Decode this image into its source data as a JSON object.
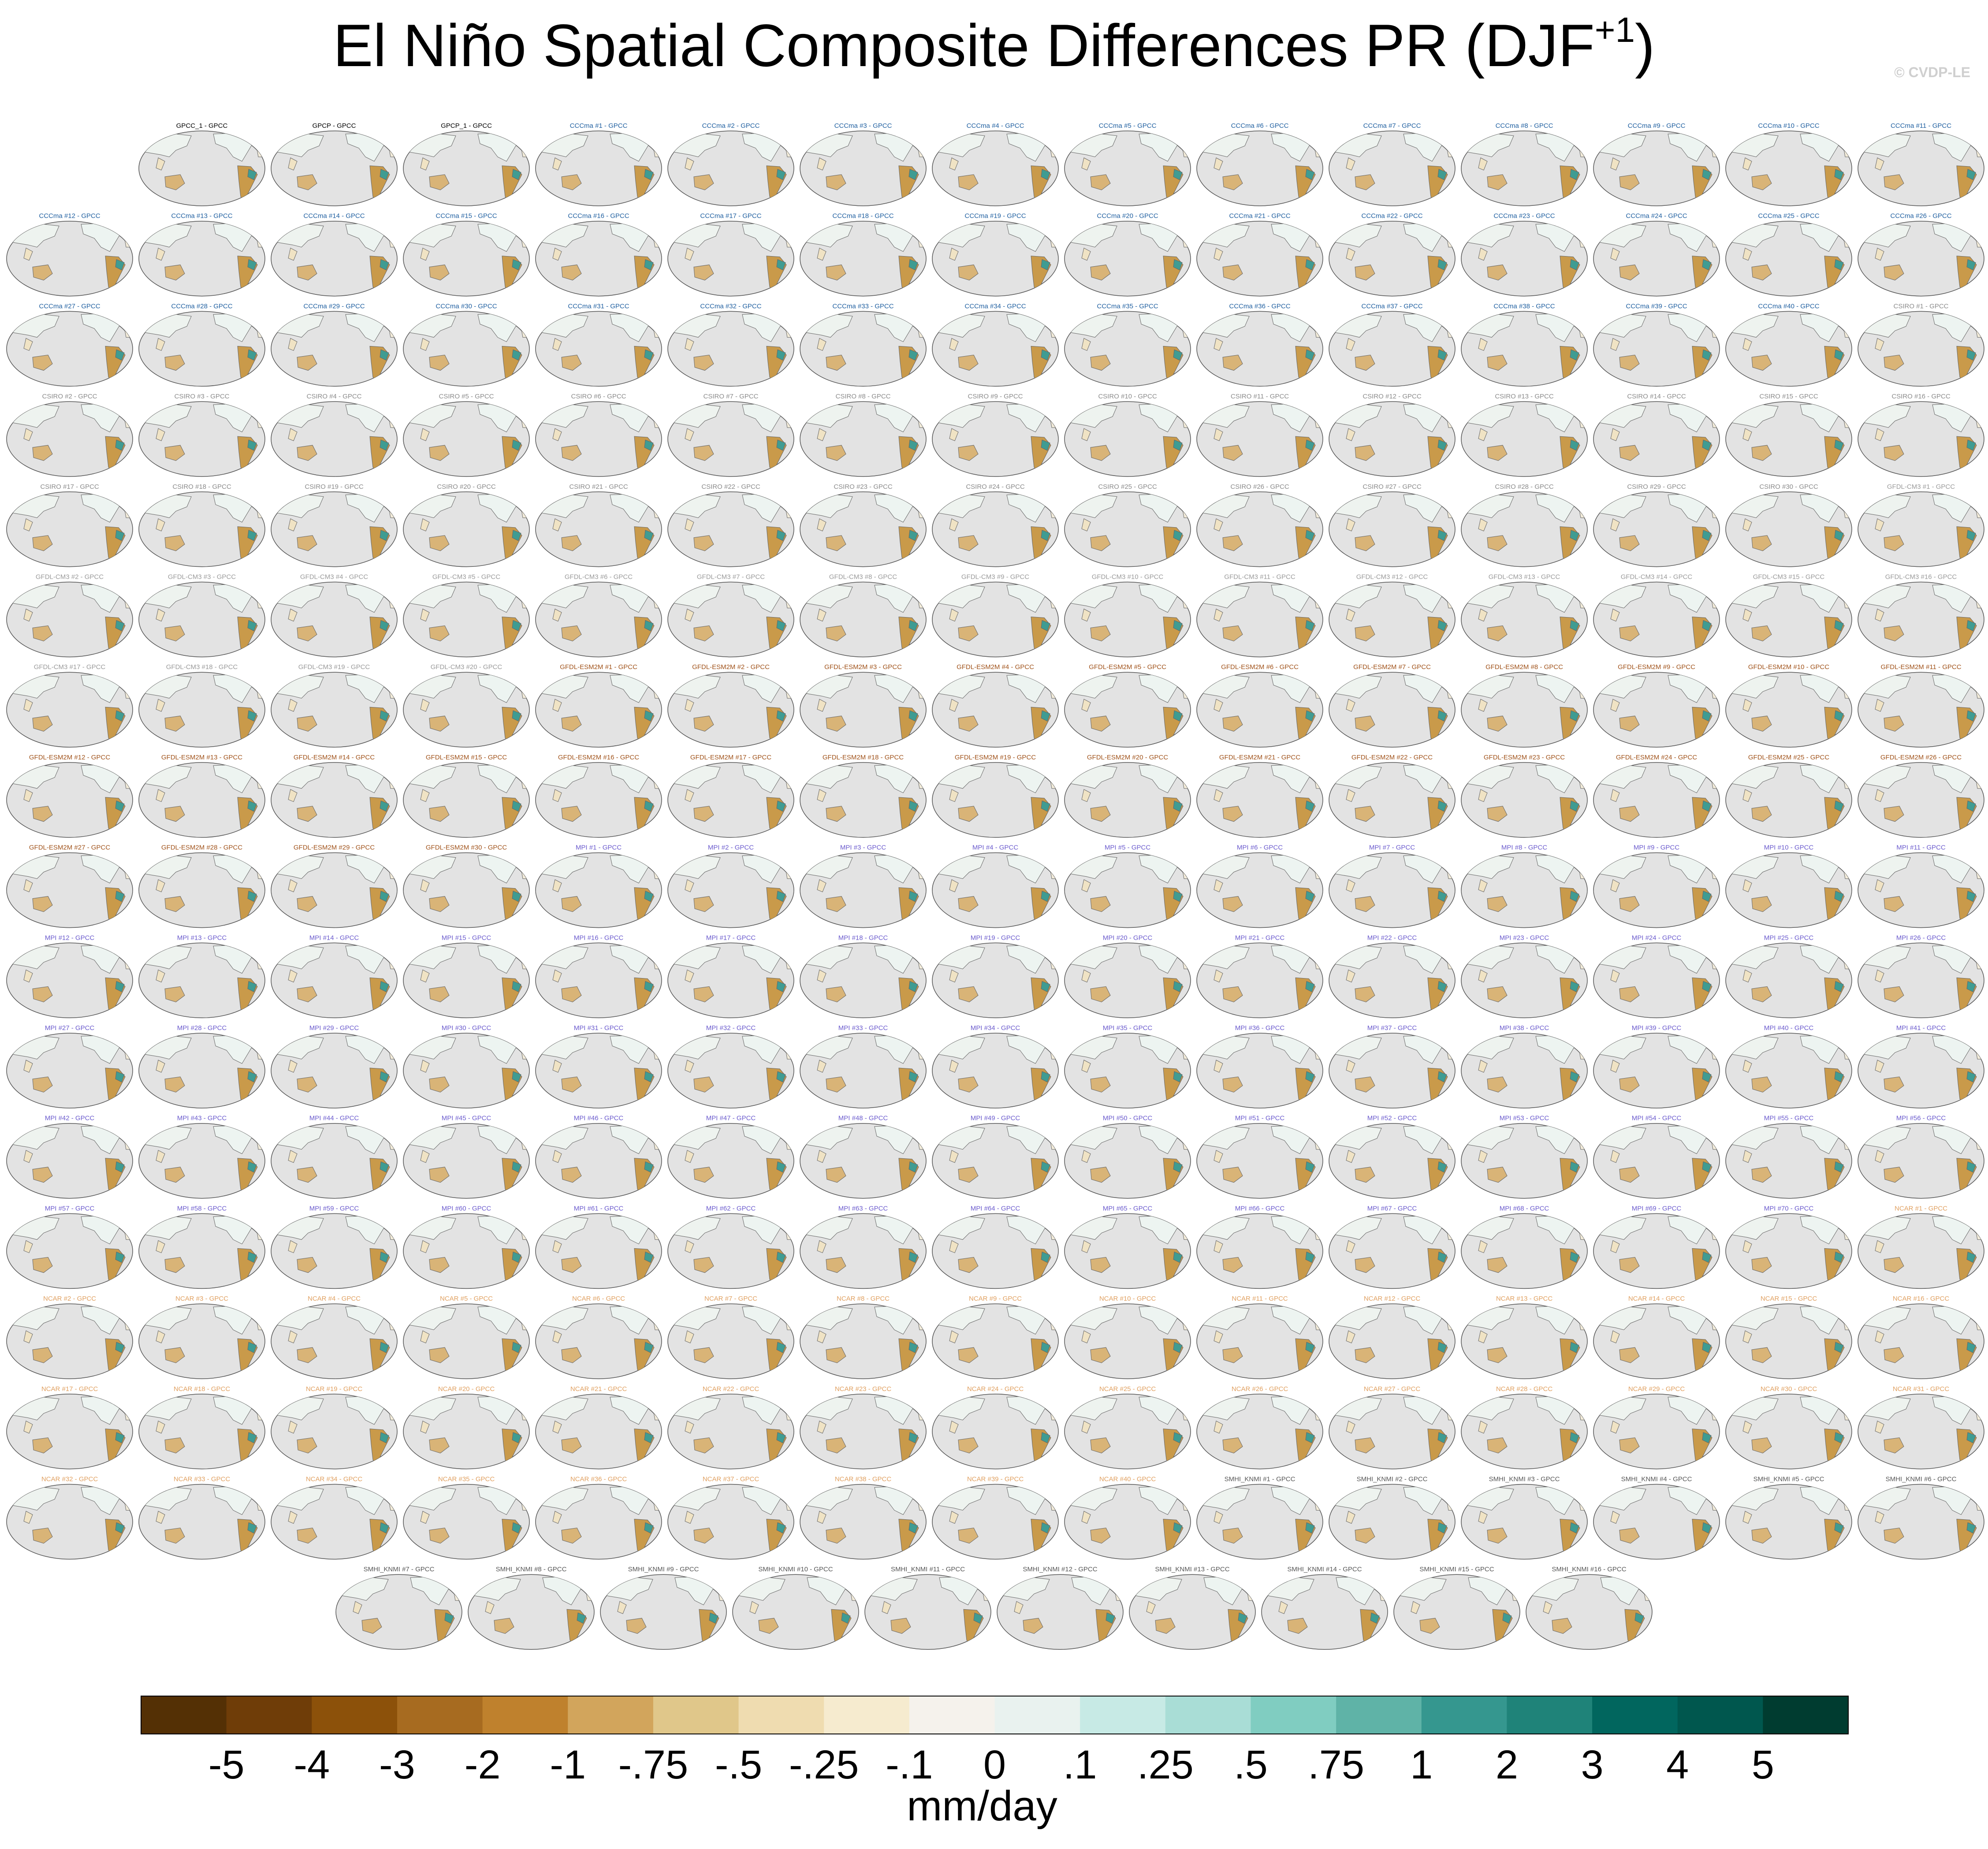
{
  "title": "El Niño Spatial Composite Differences PR (DJF",
  "title_superscript": "+1",
  "title_end": ")",
  "copyright": "© CVDP-LE",
  "panel_groups": [
    {
      "color": "#000000",
      "titles": [
        "GPCC_1 - GPCC",
        "GPCP - GPCC",
        "GPCP_1 - GPCC"
      ]
    },
    {
      "color": "#1f5fa0",
      "titles": [
        "CCCma #1 - GPCC",
        "CCCma #2 - GPCC",
        "CCCma #3 - GPCC",
        "CCCma #4 - GPCC",
        "CCCma #5 - GPCC",
        "CCCma #6 - GPCC",
        "CCCma #7 - GPCC",
        "CCCma #8 - GPCC",
        "CCCma #9 - GPCC",
        "CCCma #10 - GPCC",
        "CCCma #11 - GPCC",
        "CCCma #12 - GPCC",
        "CCCma #13 - GPCC",
        "CCCma #14 - GPCC",
        "CCCma #15 - GPCC",
        "CCCma #16 - GPCC",
        "CCCma #17 - GPCC",
        "CCCma #18 - GPCC",
        "CCCma #19 - GPCC",
        "CCCma #20 - GPCC",
        "CCCma #21 - GPCC",
        "CCCma #22 - GPCC",
        "CCCma #23 - GPCC",
        "CCCma #24 - GPCC",
        "CCCma #25 - GPCC",
        "CCCma #26 - GPCC",
        "CCCma #27 - GPCC",
        "CCCma #28 - GPCC",
        "CCCma #29 - GPCC",
        "CCCma #30 - GPCC",
        "CCCma #31 - GPCC",
        "CCCma #32 - GPCC",
        "CCCma #33 - GPCC",
        "CCCma #34 - GPCC",
        "CCCma #35 - GPCC",
        "CCCma #36 - GPCC",
        "CCCma #37 - GPCC",
        "CCCma #38 - GPCC",
        "CCCma #39 - GPCC",
        "CCCma #40 - GPCC"
      ]
    },
    {
      "color": "#8a8a8a",
      "titles": [
        "CSIRO #1 - GPCC",
        "CSIRO #2 - GPCC",
        "CSIRO #3 - GPCC",
        "CSIRO #4 - GPCC",
        "CSIRO #5 - GPCC",
        "CSIRO #6 - GPCC",
        "CSIRO #7 - GPCC",
        "CSIRO #8 - GPCC",
        "CSIRO #9 - GPCC",
        "CSIRO #10 - GPCC",
        "CSIRO #11 - GPCC",
        "CSIRO #12 - GPCC",
        "CSIRO #13 - GPCC",
        "CSIRO #14 - GPCC",
        "CSIRO #15 - GPCC",
        "CSIRO #16 - GPCC",
        "CSIRO #17 - GPCC",
        "CSIRO #18 - GPCC",
        "CSIRO #19 - GPCC",
        "CSIRO #20 - GPCC",
        "CSIRO #21 - GPCC",
        "CSIRO #22 - GPCC",
        "CSIRO #23 - GPCC",
        "CSIRO #24 - GPCC",
        "CSIRO #25 - GPCC",
        "CSIRO #26 - GPCC",
        "CSIRO #27 - GPCC",
        "CSIRO #28 - GPCC",
        "CSIRO #29 - GPCC",
        "CSIRO #30 - GPCC"
      ]
    },
    {
      "color": "#9a9a9a",
      "titles": [
        "GFDL-CM3 #1 - GPCC",
        "GFDL-CM3 #2 - GPCC",
        "GFDL-CM3 #3 - GPCC",
        "GFDL-CM3 #4 - GPCC",
        "GFDL-CM3 #5 - GPCC",
        "GFDL-CM3 #6 - GPCC",
        "GFDL-CM3 #7 - GPCC",
        "GFDL-CM3 #8 - GPCC",
        "GFDL-CM3 #9 - GPCC",
        "GFDL-CM3 #10 - GPCC",
        "GFDL-CM3 #11 - GPCC",
        "GFDL-CM3 #12 - GPCC",
        "GFDL-CM3 #13 - GPCC",
        "GFDL-CM3 #14 - GPCC",
        "GFDL-CM3 #15 - GPCC",
        "GFDL-CM3 #16 - GPCC",
        "GFDL-CM3 #17 - GPCC",
        "GFDL-CM3 #18 - GPCC",
        "GFDL-CM3 #19 - GPCC",
        "GFDL-CM3 #20 - GPCC"
      ]
    },
    {
      "color": "#a0521a",
      "titles": [
        "GFDL-ESM2M #1 - GPCC",
        "GFDL-ESM2M #2 - GPCC",
        "GFDL-ESM2M #3 - GPCC",
        "GFDL-ESM2M #4 - GPCC",
        "GFDL-ESM2M #5 - GPCC",
        "GFDL-ESM2M #6 - GPCC",
        "GFDL-ESM2M #7 - GPCC",
        "GFDL-ESM2M #8 - GPCC",
        "GFDL-ESM2M #9 - GPCC",
        "GFDL-ESM2M #10 - GPCC",
        "GFDL-ESM2M #11 - GPCC",
        "GFDL-ESM2M #12 - GPCC",
        "GFDL-ESM2M #13 - GPCC",
        "GFDL-ESM2M #14 - GPCC",
        "GFDL-ESM2M #15 - GPCC",
        "GFDL-ESM2M #16 - GPCC",
        "GFDL-ESM2M #17 - GPCC",
        "GFDL-ESM2M #18 - GPCC",
        "GFDL-ESM2M #19 - GPCC",
        "GFDL-ESM2M #20 - GPCC",
        "GFDL-ESM2M #21 - GPCC",
        "GFDL-ESM2M #22 - GPCC",
        "GFDL-ESM2M #23 - GPCC",
        "GFDL-ESM2M #24 - GPCC",
        "GFDL-ESM2M #25 - GPCC",
        "GFDL-ESM2M #26 - GPCC",
        "GFDL-ESM2M #27 - GPCC",
        "GFDL-ESM2M #28 - GPCC",
        "GFDL-ESM2M #29 - GPCC",
        "GFDL-ESM2M #30 - GPCC"
      ]
    },
    {
      "color": "#6a5acd",
      "titles": [
        "MPI #1 - GPCC",
        "MPI #2 - GPCC",
        "MPI #3 - GPCC",
        "MPI #4 - GPCC",
        "MPI #5 - GPCC",
        "MPI #6 - GPCC",
        "MPI #7 - GPCC",
        "MPI #8 - GPCC",
        "MPI #9 - GPCC",
        "MPI #10 - GPCC",
        "MPI #11 - GPCC",
        "MPI #12 - GPCC",
        "MPI #13 - GPCC",
        "MPI #14 - GPCC",
        "MPI #15 - GPCC",
        "MPI #16 - GPCC",
        "MPI #17 - GPCC",
        "MPI #18 - GPCC",
        "MPI #19 - GPCC",
        "MPI #20 - GPCC",
        "MPI #21 - GPCC",
        "MPI #22 - GPCC",
        "MPI #23 - GPCC",
        "MPI #24 - GPCC",
        "MPI #25 - GPCC",
        "MPI #26 - GPCC",
        "MPI #27 - GPCC",
        "MPI #28 - GPCC",
        "MPI #29 - GPCC",
        "MPI #30 - GPCC",
        "MPI #31 - GPCC",
        "MPI #32 - GPCC",
        "MPI #33 - GPCC",
        "MPI #34 - GPCC",
        "MPI #35 - GPCC",
        "MPI #36 - GPCC",
        "MPI #37 - GPCC",
        "MPI #38 - GPCC",
        "MPI #39 - GPCC",
        "MPI #40 - GPCC",
        "MPI #41 - GPCC",
        "MPI #42 - GPCC",
        "MPI #43 - GPCC",
        "MPI #44 - GPCC",
        "MPI #45 - GPCC",
        "MPI #46 - GPCC",
        "MPI #47 - GPCC",
        "MPI #48 - GPCC",
        "MPI #49 - GPCC",
        "MPI #50 - GPCC",
        "MPI #51 - GPCC",
        "MPI #52 - GPCC",
        "MPI #53 - GPCC",
        "MPI #54 - GPCC",
        "MPI #55 - GPCC",
        "MPI #56 - GPCC",
        "MPI #57 - GPCC",
        "MPI #58 - GPCC",
        "MPI #59 - GPCC",
        "MPI #60 - GPCC",
        "MPI #61 - GPCC",
        "MPI #62 - GPCC",
        "MPI #63 - GPCC",
        "MPI #64 - GPCC",
        "MPI #65 - GPCC",
        "MPI #66 - GPCC",
        "MPI #67 - GPCC",
        "MPI #68 - GPCC",
        "MPI #69 - GPCC",
        "MPI #70 - GPCC"
      ]
    },
    {
      "color": "#e0a060",
      "titles": [
        "NCAR #1 - GPCC",
        "NCAR #2 - GPCC",
        "NCAR #3 - GPCC",
        "NCAR #4 - GPCC",
        "NCAR #5 - GPCC",
        "NCAR #6 - GPCC",
        "NCAR #7 - GPCC",
        "NCAR #8 - GPCC",
        "NCAR #9 - GPCC",
        "NCAR #10 - GPCC",
        "NCAR #11 - GPCC",
        "NCAR #12 - GPCC",
        "NCAR #13 - GPCC",
        "NCAR #14 - GPCC",
        "NCAR #15 - GPCC",
        "NCAR #16 - GPCC",
        "NCAR #17 - GPCC",
        "NCAR #18 - GPCC",
        "NCAR #19 - GPCC",
        "NCAR #20 - GPCC",
        "NCAR #21 - GPCC",
        "NCAR #22 - GPCC",
        "NCAR #23 - GPCC",
        "NCAR #24 - GPCC",
        "NCAR #25 - GPCC",
        "NCAR #26 - GPCC",
        "NCAR #27 - GPCC",
        "NCAR #28 - GPCC",
        "NCAR #29 - GPCC",
        "NCAR #30 - GPCC",
        "NCAR #31 - GPCC",
        "NCAR #32 - GPCC",
        "NCAR #33 - GPCC",
        "NCAR #34 - GPCC",
        "NCAR #35 - GPCC",
        "NCAR #36 - GPCC",
        "NCAR #37 - GPCC",
        "NCAR #38 - GPCC",
        "NCAR #39 - GPCC",
        "NCAR #40 - GPCC"
      ]
    },
    {
      "color": "#555555",
      "titles": [
        "SMHI_KNMI #1 - GPCC",
        "SMHI_KNMI #2 - GPCC",
        "SMHI_KNMI #3 - GPCC",
        "SMHI_KNMI #4 - GPCC",
        "SMHI_KNMI #5 - GPCC",
        "SMHI_KNMI #6 - GPCC",
        "SMHI_KNMI #7 - GPCC",
        "SMHI_KNMI #8 - GPCC",
        "SMHI_KNMI #9 - GPCC",
        "SMHI_KNMI #10 - GPCC",
        "SMHI_KNMI #11 - GPCC",
        "SMHI_KNMI #12 - GPCC",
        "SMHI_KNMI #13 - GPCC",
        "SMHI_KNMI #14 - GPCC",
        "SMHI_KNMI #15 - GPCC",
        "SMHI_KNMI #16 - GPCC"
      ]
    }
  ],
  "colorbar": {
    "colors": [
      "#543005",
      "#6f3d08",
      "#8c510a",
      "#a76b20",
      "#bf812d",
      "#d2a55c",
      "#e0c78a",
      "#efdcb0",
      "#f6ebcf",
      "#f5f2ec",
      "#e9f2ef",
      "#c7eae5",
      "#a9ddd6",
      "#80cdc1",
      "#5fb3a7",
      "#35978f",
      "#1f8379",
      "#01665e",
      "#00574e",
      "#003c30"
    ],
    "levels": [
      -5,
      -4,
      -3,
      -2,
      -1,
      {
        "value": -0.75,
        "label": "-.75"
      },
      {
        "value": -0.5,
        "label": "-.5"
      },
      {
        "value": -0.25,
        "label": "-.25"
      },
      {
        "value": -0.1,
        "label": "-.1"
      },
      0,
      {
        "value": 0.1,
        "label": ".1"
      },
      {
        "value": 0.25,
        "label": ".25"
      },
      {
        "value": 0.5,
        "label": ".5"
      },
      {
        "value": 0.75,
        "label": ".75"
      },
      1,
      2,
      3,
      4,
      5
    ],
    "units": "mm/day"
  }
}
